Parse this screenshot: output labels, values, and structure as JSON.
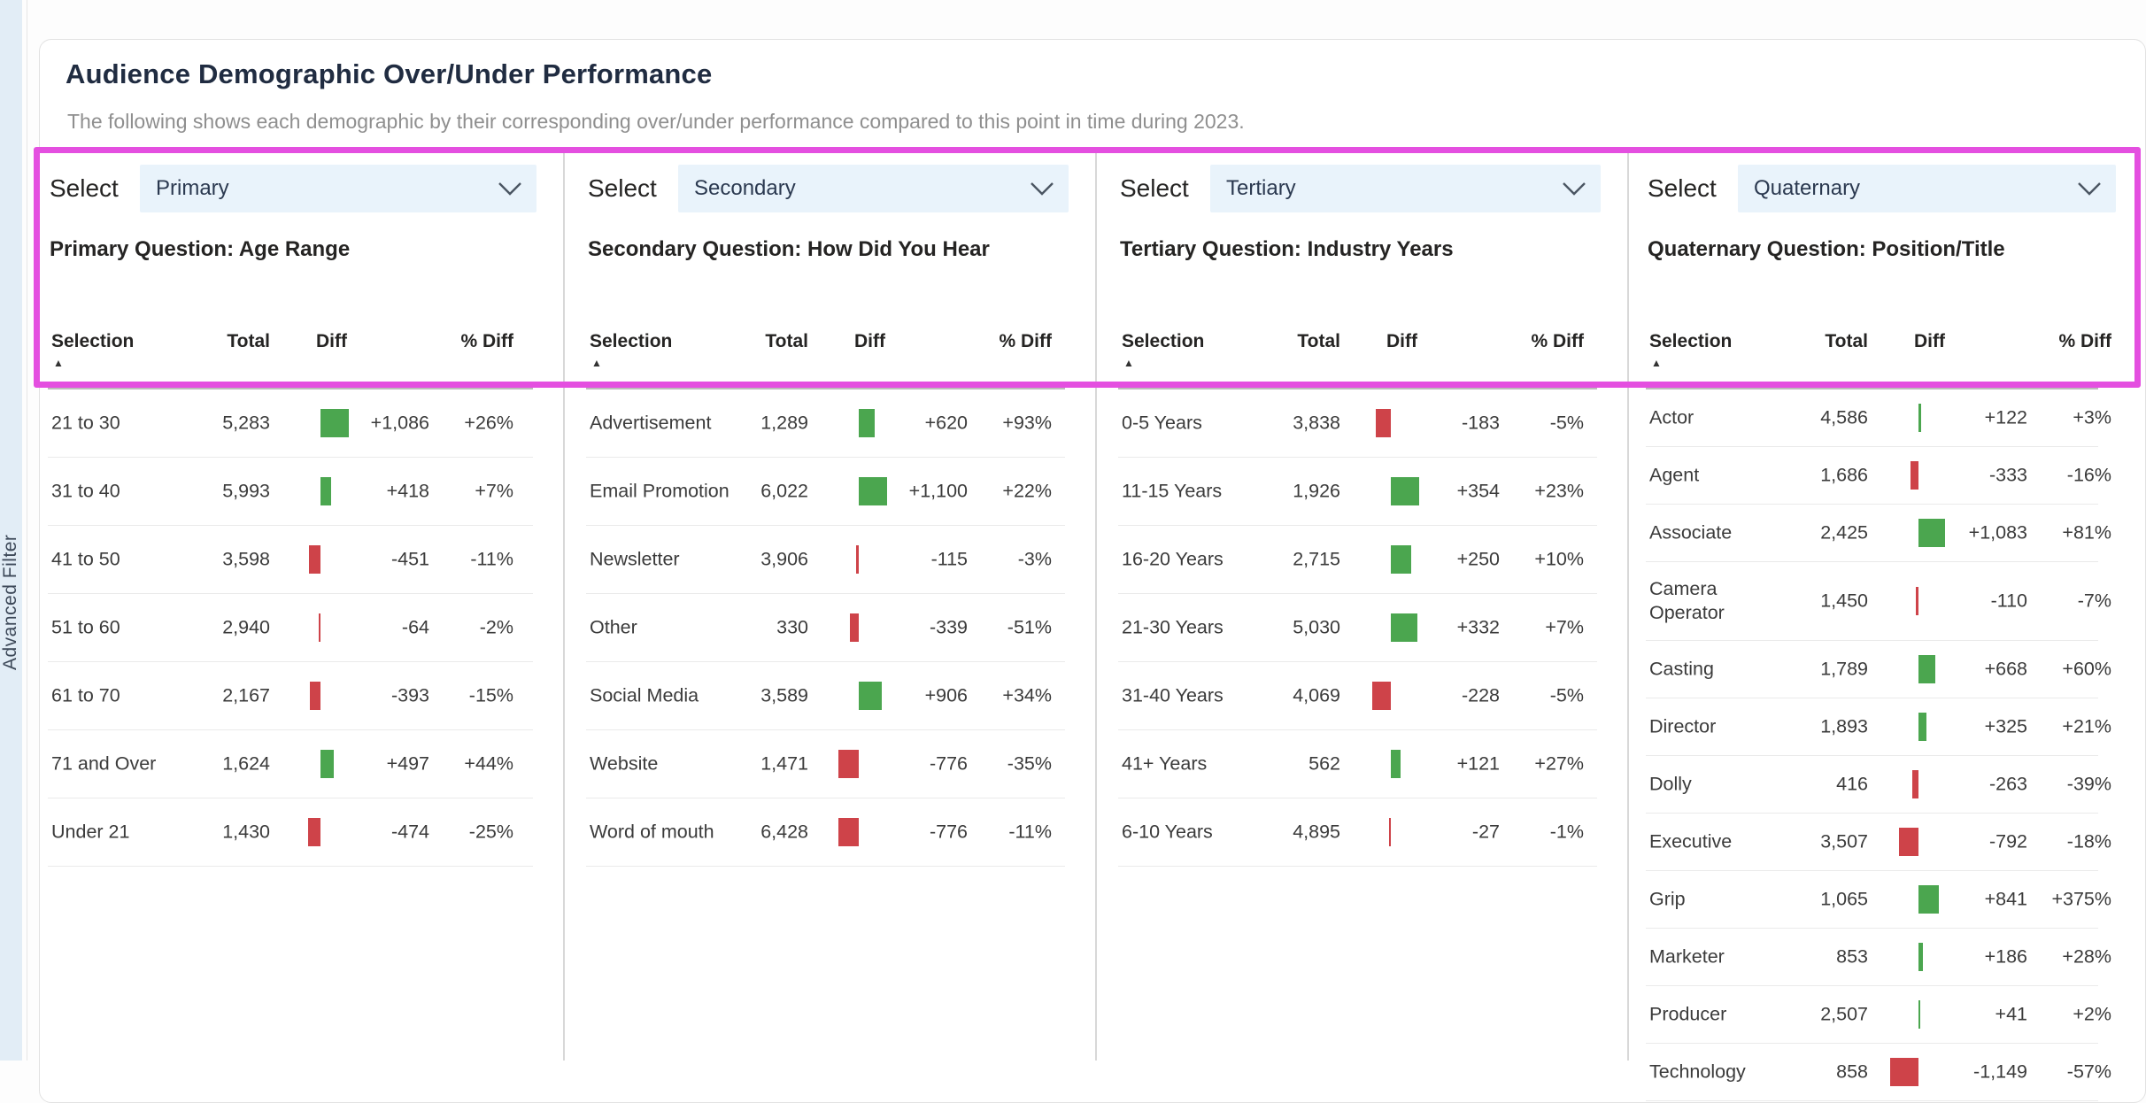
{
  "window": {
    "title": "Audience Demographic Over/Under Performance",
    "subtitle": "The following shows each demographic by their corresponding over/under performance compared to this point in time during 2023."
  },
  "left_rail": {
    "label": "Advanced Filter"
  },
  "controls": {
    "select_label": "Select"
  },
  "table_headers": {
    "selection": "Selection",
    "total": "Total",
    "diff": "Diff",
    "pct": "% Diff",
    "sort_glyph": "▲"
  },
  "colors": {
    "positive_bar": "#4BA64F",
    "negative_bar": "#CE4349",
    "highlight_border": "#E44FE0",
    "dropdown_bg": "#E9F3FB",
    "rail_bg": "#E2EDF6"
  },
  "columns": [
    {
      "select_value": "Primary",
      "question_title": "Primary Question: Age Range",
      "rows": [
        {
          "selection": "21 to 30",
          "total": "5,283",
          "diff": 1086,
          "diff_label": "+1,086",
          "pct_label": "+26%"
        },
        {
          "selection": "31 to 40",
          "total": "5,993",
          "diff": 418,
          "diff_label": "+418",
          "pct_label": "+7%"
        },
        {
          "selection": "41 to 50",
          "total": "3,598",
          "diff": -451,
          "diff_label": "-451",
          "pct_label": "-11%"
        },
        {
          "selection": "51 to 60",
          "total": "2,940",
          "diff": -64,
          "diff_label": "-64",
          "pct_label": "-2%"
        },
        {
          "selection": "61 to 70",
          "total": "2,167",
          "diff": -393,
          "diff_label": "-393",
          "pct_label": "-15%"
        },
        {
          "selection": "71 and Over",
          "total": "1,624",
          "diff": 497,
          "diff_label": "+497",
          "pct_label": "+44%"
        },
        {
          "selection": "Under 21",
          "total": "1,430",
          "diff": -474,
          "diff_label": "-474",
          "pct_label": "-25%"
        }
      ]
    },
    {
      "select_value": "Secondary",
      "question_title": "Secondary Question: How Did You Hear",
      "rows": [
        {
          "selection": "Advertisement",
          "total": "1,289",
          "diff": 620,
          "diff_label": "+620",
          "pct_label": "+93%"
        },
        {
          "selection": "Email Promotion",
          "total": "6,022",
          "diff": 1100,
          "diff_label": "+1,100",
          "pct_label": "+22%"
        },
        {
          "selection": "Newsletter",
          "total": "3,906",
          "diff": -115,
          "diff_label": "-115",
          "pct_label": "-3%"
        },
        {
          "selection": "Other",
          "total": "330",
          "diff": -339,
          "diff_label": "-339",
          "pct_label": "-51%"
        },
        {
          "selection": "Social Media",
          "total": "3,589",
          "diff": 906,
          "diff_label": "+906",
          "pct_label": "+34%"
        },
        {
          "selection": "Website",
          "total": "1,471",
          "diff": -776,
          "diff_label": "-776",
          "pct_label": "-35%"
        },
        {
          "selection": "Word of mouth",
          "total": "6,428",
          "diff": -776,
          "diff_label": "-776",
          "pct_label": "-11%"
        }
      ]
    },
    {
      "select_value": "Tertiary",
      "question_title": "Tertiary Question: Industry Years",
      "rows": [
        {
          "selection": "0-5 Years",
          "total": "3,838",
          "diff": -183,
          "diff_label": "-183",
          "pct_label": "-5%"
        },
        {
          "selection": "11-15 Years",
          "total": "1,926",
          "diff": 354,
          "diff_label": "+354",
          "pct_label": "+23%"
        },
        {
          "selection": "16-20 Years",
          "total": "2,715",
          "diff": 250,
          "diff_label": "+250",
          "pct_label": "+10%"
        },
        {
          "selection": "21-30 Years",
          "total": "5,030",
          "diff": 332,
          "diff_label": "+332",
          "pct_label": "+7%"
        },
        {
          "selection": "31-40 Years",
          "total": "4,069",
          "diff": -228,
          "diff_label": "-228",
          "pct_label": "-5%"
        },
        {
          "selection": "41+ Years",
          "total": "562",
          "diff": 121,
          "diff_label": "+121",
          "pct_label": "+27%"
        },
        {
          "selection": "6-10 Years",
          "total": "4,895",
          "diff": -27,
          "diff_label": "-27",
          "pct_label": "-1%"
        }
      ]
    },
    {
      "select_value": "Quaternary",
      "question_title": "Quaternary Question: Position/Title",
      "rows": [
        {
          "selection": "Actor",
          "total": "4,586",
          "diff": 122,
          "diff_label": "+122",
          "pct_label": "+3%"
        },
        {
          "selection": "Agent",
          "total": "1,686",
          "diff": -333,
          "diff_label": "-333",
          "pct_label": "-16%"
        },
        {
          "selection": "Associate",
          "total": "2,425",
          "diff": 1083,
          "diff_label": "+1,083",
          "pct_label": "+81%"
        },
        {
          "selection": "Camera Operator",
          "total": "1,450",
          "diff": -110,
          "diff_label": "-110",
          "pct_label": "-7%"
        },
        {
          "selection": "Casting",
          "total": "1,789",
          "diff": 668,
          "diff_label": "+668",
          "pct_label": "+60%"
        },
        {
          "selection": "Director",
          "total": "1,893",
          "diff": 325,
          "diff_label": "+325",
          "pct_label": "+21%"
        },
        {
          "selection": "Dolly",
          "total": "416",
          "diff": -263,
          "diff_label": "-263",
          "pct_label": "-39%"
        },
        {
          "selection": "Executive",
          "total": "3,507",
          "diff": -792,
          "diff_label": "-792",
          "pct_label": "-18%"
        },
        {
          "selection": "Grip",
          "total": "1,065",
          "diff": 841,
          "diff_label": "+841",
          "pct_label": "+375%"
        },
        {
          "selection": "Marketer",
          "total": "853",
          "diff": 186,
          "diff_label": "+186",
          "pct_label": "+28%"
        },
        {
          "selection": "Producer",
          "total": "2,507",
          "diff": 41,
          "diff_label": "+41",
          "pct_label": "+2%"
        },
        {
          "selection": "Technology",
          "total": "858",
          "diff": -1149,
          "diff_label": "-1,149",
          "pct_label": "-57%"
        }
      ]
    }
  ]
}
